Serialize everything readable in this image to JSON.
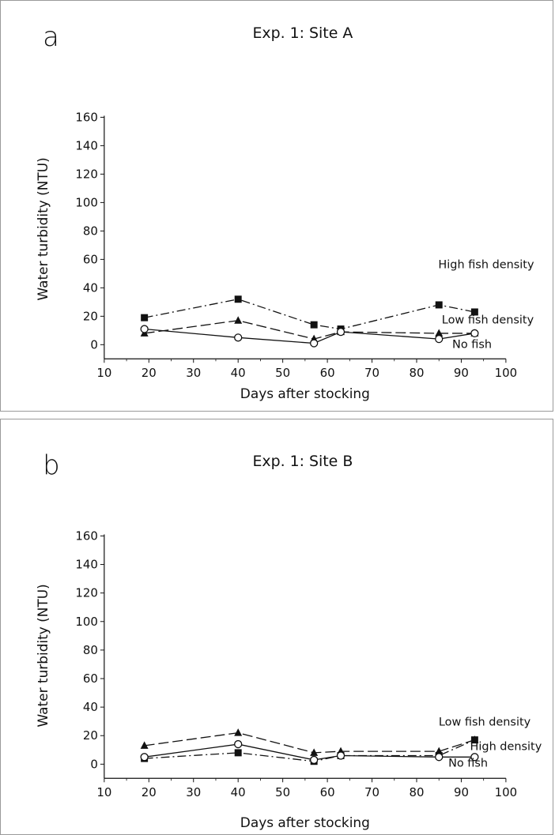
{
  "chart_data": [
    {
      "type": "line",
      "panel_letter": "a",
      "title": "Exp. 1: Site A",
      "xlabel": "Days after stocking",
      "ylabel": "Water turbidity (NTU)",
      "xlim": [
        10,
        100
      ],
      "ylim": [
        0,
        160
      ],
      "xticks": [
        10,
        20,
        30,
        40,
        50,
        60,
        70,
        80,
        90,
        100
      ],
      "yticks": [
        0,
        20,
        40,
        60,
        80,
        100,
        120,
        140,
        160
      ],
      "grid": false,
      "legend": "inline labels at right end of lines",
      "x": [
        19,
        40,
        57,
        63,
        85,
        93
      ],
      "series": [
        {
          "name": "High fish density",
          "marker": "filled-square",
          "dash": "dash-dot",
          "values": [
            19,
            32,
            14,
            11,
            28,
            23
          ]
        },
        {
          "name": "Low fish density",
          "marker": "filled-triangle",
          "dash": "long-dash",
          "values": [
            8,
            17,
            4,
            9,
            8,
            8
          ]
        },
        {
          "name": "No fish",
          "marker": "open-circle",
          "dash": "solid",
          "values": [
            11,
            5,
            1,
            9,
            4,
            8
          ]
        }
      ]
    },
    {
      "type": "line",
      "panel_letter": "b",
      "title": "Exp. 1: Site B",
      "xlabel": "Days after stocking",
      "ylabel": "Water turbidity (NTU)",
      "xlim": [
        10,
        100
      ],
      "ylim": [
        0,
        160
      ],
      "xticks": [
        10,
        20,
        30,
        40,
        50,
        60,
        70,
        80,
        90,
        100
      ],
      "yticks": [
        0,
        20,
        40,
        60,
        80,
        100,
        120,
        140,
        160
      ],
      "grid": false,
      "legend": "inline labels at right end of lines",
      "x": [
        19,
        40,
        57,
        63,
        85,
        93
      ],
      "series": [
        {
          "name": "Low fish density",
          "marker": "filled-triangle",
          "dash": "long-dash",
          "values": [
            13,
            22,
            8,
            9,
            9,
            17
          ]
        },
        {
          "name": "High density",
          "marker": "filled-square",
          "dash": "dash-dot",
          "values": [
            4,
            8,
            2,
            6,
            6,
            17
          ]
        },
        {
          "name": "No fish",
          "marker": "open-circle",
          "dash": "solid",
          "values": [
            5,
            14,
            3,
            6,
            5,
            5
          ]
        }
      ]
    }
  ]
}
